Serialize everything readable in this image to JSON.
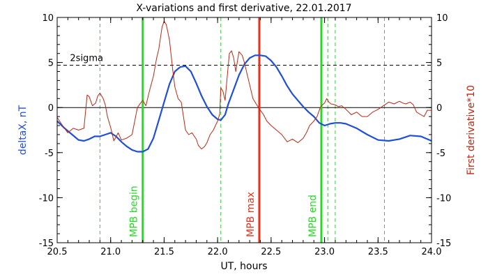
{
  "chart_data": {
    "type": "line",
    "title": "X-variations and first derivative, 22.01.2017",
    "xlabel": "UT, hours",
    "ylabel_left": "deltaX, nT",
    "ylabel_right": "First derivative*10",
    "xlim": [
      20.5,
      24.0
    ],
    "ylim": [
      -15,
      10
    ],
    "xticks": [
      20.5,
      21.0,
      21.5,
      22.0,
      22.5,
      23.0,
      23.5,
      24.0
    ],
    "xtick_labels": [
      "20.5",
      "21.0",
      "21.5",
      "22.0",
      "22.5",
      "23.0",
      "23.5",
      "24.0"
    ],
    "yticks": [
      10,
      5,
      0,
      -5,
      -10,
      -15
    ],
    "ytick_labels": [
      "10",
      "5",
      "0",
      "-5",
      "-10",
      "-15"
    ],
    "grid": false,
    "colors": {
      "deltax": "#1f4fd6",
      "derivative": "#c0250f",
      "mpb_begin": "#22dd22",
      "mpb_max": "#e8301a",
      "mpb_end": "#22dd22",
      "dashed_markers": "#33cc33",
      "reference": "#000000"
    },
    "sigma": {
      "label": "2sigma",
      "y": 4.7
    },
    "zero_line": 0,
    "markers": [
      {
        "label": "MPB begin",
        "x": 21.3
      },
      {
        "label": "MPB max",
        "x": 22.39
      },
      {
        "label": "MPB end",
        "x": 22.97
      }
    ],
    "dashed_markers_x": [
      20.9,
      22.03,
      23.03,
      23.1,
      23.56
    ],
    "series": [
      {
        "axis": "left",
        "points": [
          [
            20.5,
            -1.5
          ],
          [
            20.57,
            -2.3
          ],
          [
            20.64,
            -3.0
          ],
          [
            20.7,
            -3.6
          ],
          [
            20.75,
            -3.7
          ],
          [
            20.8,
            -3.5
          ],
          [
            20.85,
            -3.2
          ],
          [
            20.9,
            -3.2
          ],
          [
            20.95,
            -3.0
          ],
          [
            21.0,
            -2.8
          ],
          [
            21.05,
            -3.2
          ],
          [
            21.1,
            -3.8
          ],
          [
            21.15,
            -4.3
          ],
          [
            21.2,
            -4.7
          ],
          [
            21.25,
            -4.9
          ],
          [
            21.3,
            -4.9
          ],
          [
            21.35,
            -4.6
          ],
          [
            21.4,
            -3.4
          ],
          [
            21.45,
            -1.4
          ],
          [
            21.5,
            0.6
          ],
          [
            21.55,
            2.6
          ],
          [
            21.6,
            4.0
          ],
          [
            21.65,
            4.5
          ],
          [
            21.7,
            4.6
          ],
          [
            21.75,
            4.0
          ],
          [
            21.8,
            2.7
          ],
          [
            21.85,
            1.3
          ],
          [
            21.9,
            0.1
          ],
          [
            21.95,
            -0.8
          ],
          [
            22.0,
            -1.3
          ],
          [
            22.03,
            -1.4
          ],
          [
            22.07,
            -0.8
          ],
          [
            22.1,
            0.4
          ],
          [
            22.15,
            2.0
          ],
          [
            22.2,
            3.6
          ],
          [
            22.25,
            4.8
          ],
          [
            22.3,
            5.5
          ],
          [
            22.35,
            5.8
          ],
          [
            22.4,
            5.8
          ],
          [
            22.45,
            5.7
          ],
          [
            22.5,
            5.2
          ],
          [
            22.55,
            4.5
          ],
          [
            22.6,
            3.5
          ],
          [
            22.65,
            2.4
          ],
          [
            22.7,
            1.5
          ],
          [
            22.75,
            0.8
          ],
          [
            22.8,
            0.1
          ],
          [
            22.85,
            -0.5
          ],
          [
            22.9,
            -1.0
          ],
          [
            22.95,
            -1.7
          ],
          [
            23.0,
            -2.0
          ],
          [
            23.05,
            -1.8
          ],
          [
            23.1,
            -1.7
          ],
          [
            23.15,
            -1.7
          ],
          [
            23.2,
            -1.8
          ],
          [
            23.3,
            -2.3
          ],
          [
            23.4,
            -3.0
          ],
          [
            23.5,
            -3.6
          ],
          [
            23.6,
            -3.7
          ],
          [
            23.7,
            -3.5
          ],
          [
            23.8,
            -3.1
          ],
          [
            23.9,
            -3.2
          ],
          [
            24.0,
            -3.7
          ]
        ]
      },
      {
        "axis": "right",
        "points": [
          [
            20.5,
            -1.1
          ],
          [
            20.55,
            -2.0
          ],
          [
            20.6,
            -2.8
          ],
          [
            20.65,
            -2.3
          ],
          [
            20.7,
            -2.5
          ],
          [
            20.75,
            -2.3
          ],
          [
            20.78,
            1.4
          ],
          [
            20.8,
            1.2
          ],
          [
            20.83,
            0.2
          ],
          [
            20.86,
            0.5
          ],
          [
            20.88,
            1.3
          ],
          [
            20.9,
            1.6
          ],
          [
            20.93,
            1.0
          ],
          [
            20.95,
            0.3
          ],
          [
            20.97,
            -1.0
          ],
          [
            21.0,
            -2.2
          ],
          [
            21.03,
            -3.7
          ],
          [
            21.07,
            -2.8
          ],
          [
            21.1,
            -3.6
          ],
          [
            21.15,
            -3.4
          ],
          [
            21.2,
            -3.0
          ],
          [
            21.25,
            0.0
          ],
          [
            21.28,
            0.5
          ],
          [
            21.3,
            0.8
          ],
          [
            21.33,
            0.2
          ],
          [
            21.36,
            1.7
          ],
          [
            21.4,
            3.5
          ],
          [
            21.43,
            5.5
          ],
          [
            21.45,
            6.5
          ],
          [
            21.48,
            8.9
          ],
          [
            21.5,
            9.6
          ],
          [
            21.52,
            9.2
          ],
          [
            21.55,
            7.5
          ],
          [
            21.58,
            4.2
          ],
          [
            21.6,
            2.3
          ],
          [
            21.63,
            1.0
          ],
          [
            21.66,
            0.6
          ],
          [
            21.7,
            -2.5
          ],
          [
            21.73,
            -3.0
          ],
          [
            21.76,
            -2.8
          ],
          [
            21.8,
            -3.5
          ],
          [
            21.82,
            -4.2
          ],
          [
            21.85,
            -4.6
          ],
          [
            21.88,
            -4.3
          ],
          [
            21.9,
            -3.9
          ],
          [
            21.93,
            -3.0
          ],
          [
            21.96,
            -2.5
          ],
          [
            22.0,
            -1.5
          ],
          [
            22.02,
            -0.7
          ],
          [
            22.03,
            2.2
          ],
          [
            22.05,
            1.8
          ],
          [
            22.07,
            0.8
          ],
          [
            22.09,
            3.5
          ],
          [
            22.11,
            6.0
          ],
          [
            22.13,
            6.3
          ],
          [
            22.15,
            5.5
          ],
          [
            22.17,
            4.0
          ],
          [
            22.2,
            6.2
          ],
          [
            22.23,
            5.8
          ],
          [
            22.25,
            5.0
          ],
          [
            22.28,
            3.5
          ],
          [
            22.3,
            2.5
          ],
          [
            22.33,
            1.0
          ],
          [
            22.36,
            0.4
          ],
          [
            22.4,
            -0.3
          ],
          [
            22.43,
            -0.8
          ],
          [
            22.46,
            -1.5
          ],
          [
            22.5,
            -2.0
          ],
          [
            22.55,
            -2.5
          ],
          [
            22.6,
            -3.0
          ],
          [
            22.65,
            -3.8
          ],
          [
            22.7,
            -3.5
          ],
          [
            22.75,
            -3.9
          ],
          [
            22.8,
            -3.4
          ],
          [
            22.83,
            -2.8
          ],
          [
            22.86,
            -2.0
          ],
          [
            22.9,
            -1.5
          ],
          [
            22.93,
            -1.0
          ],
          [
            22.96,
            0.0
          ],
          [
            22.98,
            0.3
          ],
          [
            23.0,
            0.5
          ],
          [
            23.02,
            1.0
          ],
          [
            23.04,
            0.6
          ],
          [
            23.06,
            0.4
          ],
          [
            23.1,
            0.3
          ],
          [
            23.13,
            0.1
          ],
          [
            23.16,
            0.2
          ],
          [
            23.2,
            -0.2
          ],
          [
            23.25,
            -0.8
          ],
          [
            23.3,
            -0.5
          ],
          [
            23.35,
            -1.0
          ],
          [
            23.4,
            -1.0
          ],
          [
            23.45,
            -0.5
          ],
          [
            23.5,
            -0.2
          ],
          [
            23.55,
            0.2
          ],
          [
            23.6,
            0.6
          ],
          [
            23.65,
            0.4
          ],
          [
            23.7,
            0.7
          ],
          [
            23.73,
            0.5
          ],
          [
            23.76,
            0.4
          ],
          [
            23.8,
            0.6
          ],
          [
            23.83,
            0.3
          ],
          [
            23.86,
            -0.5
          ],
          [
            23.9,
            -0.8
          ],
          [
            23.93,
            -1.0
          ],
          [
            23.96,
            -0.3
          ],
          [
            24.0,
            -0.3
          ]
        ]
      }
    ]
  }
}
